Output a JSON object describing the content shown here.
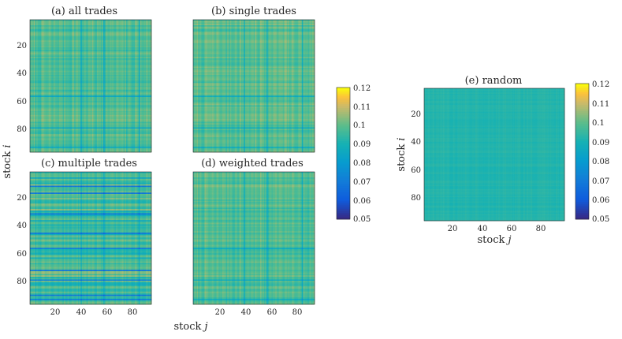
{
  "chart_data": {
    "type": "heatmap",
    "colormap": "parula",
    "xlabel": "stock j",
    "ylabel": "stock i",
    "axis_labels": {
      "x_text": "stock ",
      "x_var": "j",
      "y_text": "stock ",
      "y_var": "i"
    },
    "xlim": [
      1,
      96
    ],
    "ylim": [
      1,
      96
    ],
    "x_ticks": [
      20,
      40,
      60,
      80
    ],
    "y_ticks": [
      20,
      40,
      60,
      80
    ],
    "x_tick_labels": [
      "20",
      "40",
      "60",
      "80"
    ],
    "y_tick_labels": [
      "20",
      "40",
      "60",
      "80"
    ],
    "n_stocks": 96,
    "panels": [
      {
        "id": "a",
        "title": "(a) all trades",
        "clim": [
          0.05,
          0.12
        ],
        "mean": 0.098,
        "spread": 0.011
      },
      {
        "id": "b",
        "title": "(b) single trades",
        "clim": [
          0.05,
          0.12
        ],
        "mean": 0.099,
        "spread": 0.01
      },
      {
        "id": "c",
        "title": "(c) multiple trades",
        "clim": [
          0.05,
          0.12
        ],
        "mean": 0.096,
        "spread": 0.014
      },
      {
        "id": "d",
        "title": "(d) weighted trades",
        "clim": [
          0.05,
          0.12
        ],
        "mean": 0.098,
        "spread": 0.01
      },
      {
        "id": "e",
        "title": "(e) random",
        "clim": [
          0.05,
          0.12
        ],
        "mean": 0.092,
        "spread": 0.002
      }
    ],
    "colorbar": {
      "range": [
        0.05,
        0.12
      ],
      "ticks": [
        0.05,
        0.06,
        0.07,
        0.08,
        0.09,
        0.1,
        0.11,
        0.12
      ],
      "tick_labels": [
        "0.05",
        "0.06",
        "0.07",
        "0.08",
        "0.09",
        "0.1",
        "0.11",
        "0.12"
      ]
    }
  }
}
